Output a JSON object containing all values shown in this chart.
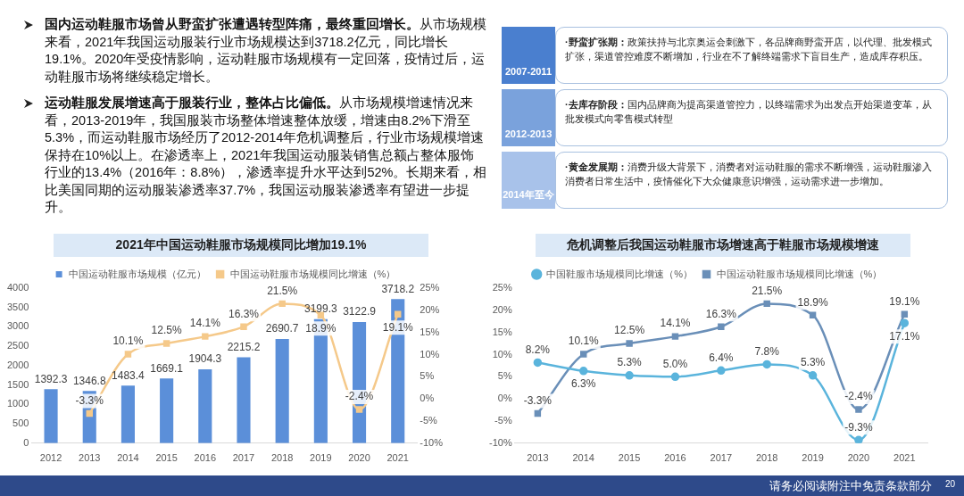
{
  "chart_data": [
    {
      "type": "other",
      "annotations": [
        "国内运动鞋服市场曾从野蛮扩张遭遇转型阵痛，最终重回增长。",
        "从市场规模来看，2021年我国运动服装行业市场规模达到3718.2亿元，同比增长19.1%。2020年受疫情影响，运动鞋服市场规模有一定回落，疫情过后，运动鞋服市场将继续稳定增长。",
        "运动鞋服发展增速高于服装行业，整体占比偏低。",
        "从市场规模增速情况来看，2013-2019年，我国服装市场整体增速整体放缓，增速由8.2%下滑至5.3%，而运动鞋服市场经历了2012-2014年危机调整后，行业市场规模增速保持在10%以上。在渗透率上，2021年我国运动服装销售总额占整体服饰行业的13.4%（2016年：8.8%），渗透率提升水平达到52%。长期来看，相比美国同期的运动服装渗透率37.7%，我国运动服装渗透率有望进一步提升。",
        "2007-2011",
        "·野蛮扩张期：",
        "政策扶持与北京奥运会刺激下，各品牌商野蛮开店，以代理、批发模式扩张，渠道管控难度不断增加，行业在不了解终端需求下盲目生产，造成库存积压。",
        "2012-2013",
        "·去库存阶段：",
        "国内品牌商为提高渠道管控力，以终端需求为出发点开始渠道变革，从批发模式向零售模式转型",
        "2014年至今",
        "·黄金发展期：",
        "消费升级大背景下，消费者对运动鞋服的需求不断增强，运动鞋服渗入消费者日常生活中，疫情催化下大众健康意识增强，运动需求进一步增加。",
        "请务必阅读附注中免责条款部分",
        "20"
      ]
    },
    {
      "type": "bar",
      "title": "2021年中国运动鞋服市场规模同比增加19.1%",
      "categories": [
        "2012",
        "2013",
        "2014",
        "2015",
        "2016",
        "2017",
        "2018",
        "2019",
        "2020",
        "2021"
      ],
      "series": [
        {
          "name": "中国运动鞋服市场规模（亿元）",
          "color": "#5b8fd9",
          "values": [
            1392.3,
            1346.8,
            1483.4,
            1669.1,
            1904.3,
            2215.2,
            2690.7,
            3199.3,
            3122.9,
            3718.2
          ],
          "value_labels": [
            "1392.3",
            "1346.8",
            "1483.4",
            "1669.1",
            "1904.3",
            "2215.2",
            "2690.7",
            "3199.3",
            "3122.9",
            "3718.2"
          ]
        },
        {
          "name": "中国运动鞋服市场规模同比增速（%）",
          "type": "line",
          "axis": "y2",
          "color": "#f5c98a",
          "marker": "square",
          "values": [
            null,
            -3.3,
            10.1,
            12.5,
            14.1,
            16.3,
            21.5,
            18.9,
            -2.4,
            19.1
          ],
          "value_labels": [
            null,
            "-3.3%",
            "10.1%",
            "12.5%",
            "14.1%",
            "16.3%",
            "21.5%",
            "18.9%",
            "-2.4%",
            "19.1%"
          ]
        }
      ],
      "ylim": [
        0,
        4000
      ],
      "yticks": [
        0,
        500,
        1000,
        1500,
        2000,
        2500,
        3000,
        3500,
        4000
      ],
      "y2lim": [
        -10,
        25
      ],
      "y2ticks": [
        {
          "value": -10,
          "label": "-10%"
        },
        {
          "value": -5,
          "label": "-5%"
        },
        {
          "value": 0,
          "label": "0%"
        },
        {
          "value": 5,
          "label": "5%"
        },
        {
          "value": 10,
          "label": "10%"
        },
        {
          "value": 15,
          "label": "15%"
        },
        {
          "value": 20,
          "label": "20%"
        },
        {
          "value": 25,
          "label": "25%"
        }
      ],
      "legend": "top",
      "grid": false
    },
    {
      "type": "line",
      "title": "危机调整后我国运动鞋服市场增速高于鞋服市场规模增速",
      "categories": [
        "2013",
        "2014",
        "2015",
        "2016",
        "2017",
        "2018",
        "2019",
        "2020",
        "2021"
      ],
      "series": [
        {
          "name": "中国鞋服市场规模同比增速（%）",
          "color": "#5ab4dc",
          "marker": "circle",
          "values": [
            8.2,
            6.3,
            5.3,
            5.0,
            6.4,
            7.8,
            5.3,
            -9.3,
            17.1
          ],
          "value_labels": [
            "8.2%",
            "6.3%",
            "5.3%",
            "5.0%",
            "6.4%",
            "7.8%",
            "5.3%",
            "-9.3%",
            "17.1%"
          ]
        },
        {
          "name": "中国运动鞋服市场规模同比增速（%）",
          "color": "#6a8fb8",
          "marker": "square",
          "values": [
            -3.3,
            10.1,
            12.5,
            14.1,
            16.3,
            21.5,
            18.9,
            -2.4,
            19.1
          ],
          "value_labels": [
            "-3.3%",
            "10.1%",
            "12.5%",
            "14.1%",
            "16.3%",
            "21.5%",
            "18.9%",
            "-2.4%",
            "19.1%"
          ]
        }
      ],
      "ylim": [
        -10,
        25
      ],
      "yticks": [
        {
          "value": -10,
          "label": "-10%"
        },
        {
          "value": -5,
          "label": "-5%"
        },
        {
          "value": 0,
          "label": "0%"
        },
        {
          "value": 5,
          "label": "5%"
        },
        {
          "value": 10,
          "label": "10%"
        },
        {
          "value": 15,
          "label": "15%"
        },
        {
          "value": 20,
          "label": "20%"
        },
        {
          "value": 25,
          "label": "25%"
        }
      ],
      "legend": "top",
      "grid": false
    }
  ]
}
